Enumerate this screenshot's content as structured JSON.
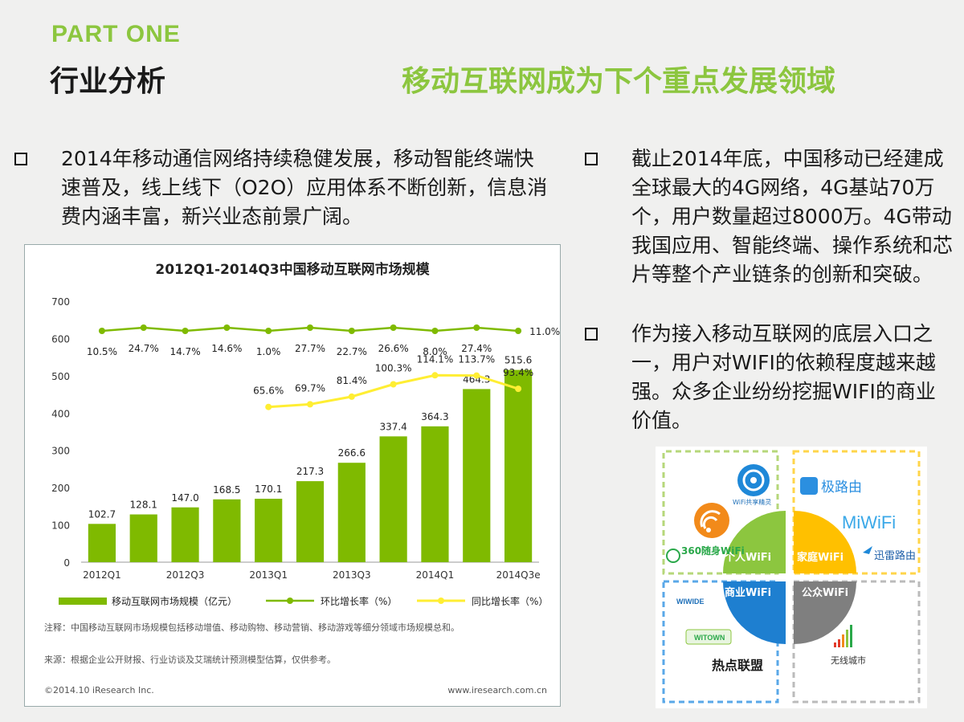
{
  "header": {
    "part": "PART ONE",
    "section": "行业分析",
    "headline": "移动互联网成为下个重点发展领域"
  },
  "bullets": [
    "2014年移动通信网络持续稳健发展，移动智能终端快速普及，线上线下（O2O）应用体系不断创新，信息消费内涵丰富，新兴业态前景广阔。",
    "截止2014年底，中国移动已经建成全球最大的4G网络，4G基站70万个，用户数量超过8000万。4G带动我国应用、智能终端、操作系统和芯片等整个产业链条的创新和突破。",
    "作为接入移动互联网的底层入口之一，用户对WIFI的依赖程度越来越强。众多企业纷纷挖掘WIFI的商业价值。"
  ],
  "chart_data": {
    "type": "bar",
    "title": "2012Q1-2014Q3中国移动互联网市场规模",
    "categories": [
      "2012Q1",
      "2012Q2",
      "2012Q3",
      "2012Q4",
      "2013Q1",
      "2013Q2",
      "2013Q3",
      "2013Q4",
      "2014Q1",
      "2014Q2",
      "2014Q3e"
    ],
    "x_tick_labels": [
      "2012Q1",
      "2012Q3",
      "2013Q1",
      "2013Q3",
      "2014Q1",
      "2014Q3e"
    ],
    "ylim": [
      0,
      700
    ],
    "yticks": [
      0,
      100,
      200,
      300,
      400,
      500,
      600,
      700
    ],
    "grid": false,
    "legend_position": "bottom",
    "series": [
      {
        "name": "移动互联网市场规模（亿元）",
        "kind": "bar",
        "color": "#7fba00",
        "values": [
          102.7,
          128.1,
          147.0,
          168.5,
          170.1,
          217.3,
          266.6,
          337.4,
          364.3,
          464.3,
          515.6
        ],
        "labels": [
          "102.7",
          "128.1",
          "147.0",
          "168.5",
          "170.1",
          "217.3",
          "266.6",
          "337.4",
          "364.3",
          "464.3",
          "515.6"
        ]
      },
      {
        "name": "环比增长率（%）",
        "kind": "line",
        "color": "#7fba00",
        "values": [
          10.5,
          24.7,
          14.7,
          14.6,
          1.0,
          27.7,
          22.7,
          26.6,
          8.0,
          27.4,
          11.0
        ],
        "labels": [
          "10.5%",
          "24.7%",
          "14.7%",
          "14.6%",
          "1.0%",
          "27.7%",
          "22.7%",
          "26.6%",
          "8.0%",
          "27.4%",
          "11.0%"
        ]
      },
      {
        "name": "同比增长率（%）",
        "kind": "line",
        "color": "#ffee33",
        "values": [
          null,
          null,
          null,
          null,
          65.6,
          69.7,
          81.4,
          100.3,
          114.1,
          113.7,
          93.4
        ],
        "labels": [
          null,
          null,
          null,
          null,
          "65.6%",
          "69.7%",
          "81.4%",
          "100.3%",
          "114.1%",
          "113.7%",
          "93.4%"
        ]
      }
    ],
    "note": "注释：中国移动互联网市场规模包括移动增值、移动购物、移动营销、移动游戏等细分领域市场规模总和。",
    "source": "来源：根据企业公开财报、行业访谈及艾瑞统计预测模型估算，仅供参考。",
    "copyright": "©2014.10 iResearch Inc.",
    "website": "www.iresearch.com.cn"
  },
  "wifi_diagram": {
    "quadrants": [
      "个人WiFi",
      "家庭WiFi",
      "商业WiFi",
      "公众WiFi"
    ],
    "colors": {
      "personal": "#8cc63f",
      "home": "#ffc000",
      "business": "#1e7fd0",
      "public": "#7f7f7f"
    },
    "brands": {
      "personal": [
        "WiFi共享精灵",
        "360随身WiFi"
      ],
      "home": [
        "极路由",
        "MiWiFi",
        "迅雷路由"
      ],
      "business": [
        "WIWIDE",
        "WITOWN",
        "热点联盟"
      ],
      "public": [
        "无线城市"
      ]
    }
  }
}
